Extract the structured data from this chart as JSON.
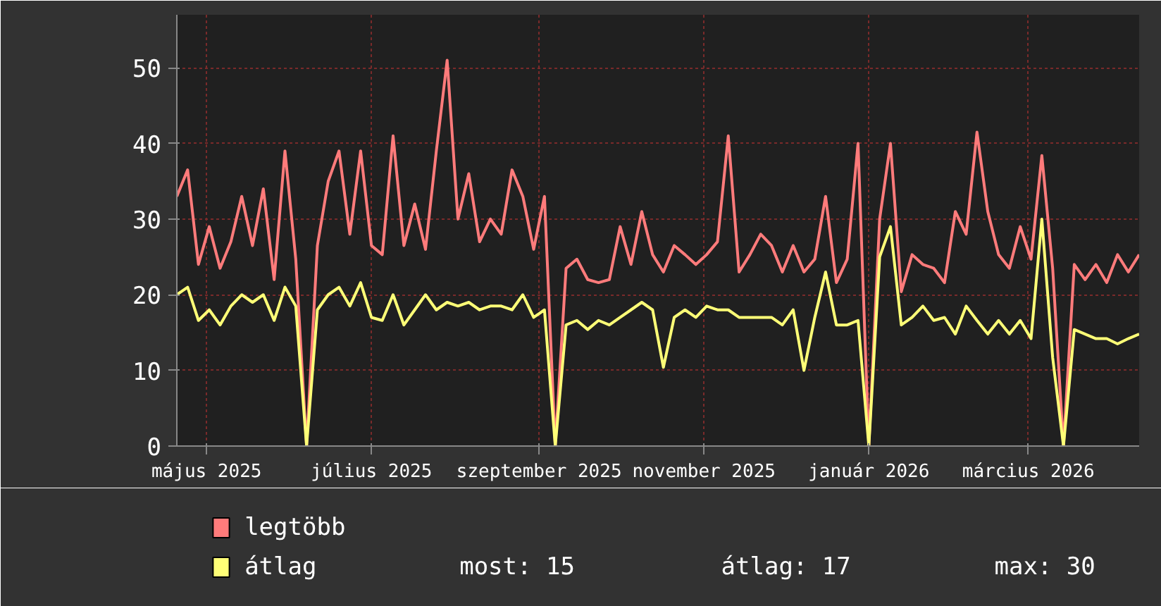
{
  "chart_data": {
    "type": "line",
    "x": [
      "2025-04-20",
      "2025-04-24",
      "2025-04-28",
      "2025-05-02",
      "2025-05-06",
      "2025-05-10",
      "2025-05-14",
      "2025-05-18",
      "2025-05-22",
      "2025-05-26",
      "2025-05-30",
      "2025-06-03",
      "2025-06-07",
      "2025-06-11",
      "2025-06-15",
      "2025-06-19",
      "2025-06-23",
      "2025-06-27",
      "2025-07-01",
      "2025-07-05",
      "2025-07-09",
      "2025-07-13",
      "2025-07-17",
      "2025-07-21",
      "2025-07-25",
      "2025-07-29",
      "2025-08-02",
      "2025-08-06",
      "2025-08-10",
      "2025-08-14",
      "2025-08-18",
      "2025-08-22",
      "2025-08-26",
      "2025-08-30",
      "2025-09-03",
      "2025-09-07",
      "2025-09-11",
      "2025-09-15",
      "2025-09-19",
      "2025-09-23",
      "2025-09-27",
      "2025-10-01",
      "2025-10-05",
      "2025-10-09",
      "2025-10-13",
      "2025-10-17",
      "2025-10-21",
      "2025-10-25",
      "2025-10-29",
      "2025-11-02",
      "2025-11-06",
      "2025-11-10",
      "2025-11-14",
      "2025-11-18",
      "2025-11-22",
      "2025-11-26",
      "2025-11-30",
      "2025-12-04",
      "2025-12-08",
      "2025-12-12",
      "2025-12-16",
      "2025-12-20",
      "2025-12-24",
      "2025-12-28",
      "2026-01-01",
      "2026-01-05",
      "2026-01-09",
      "2026-01-13",
      "2026-01-17",
      "2026-01-21",
      "2026-01-25",
      "2026-01-29",
      "2026-02-02",
      "2026-02-06",
      "2026-02-10",
      "2026-02-14",
      "2026-02-18",
      "2026-02-22",
      "2026-02-26",
      "2026-03-02",
      "2026-03-06",
      "2026-03-10",
      "2026-03-14",
      "2026-03-18",
      "2026-03-22",
      "2026-03-26",
      "2026-03-30",
      "2026-04-03",
      "2026-04-07",
      "2026-04-11"
    ],
    "series": [
      {
        "name": "legtöbb",
        "color": "#ff7b7b",
        "values": [
          33,
          36.5,
          24,
          29,
          23.5,
          27,
          33,
          26.5,
          34,
          22,
          39,
          24.7,
          0,
          26.5,
          35,
          39,
          28,
          39,
          26.5,
          25.3,
          41,
          26.5,
          32,
          26,
          39,
          51,
          30,
          36,
          27,
          30,
          28,
          36.5,
          33,
          26,
          33,
          0,
          23.5,
          24.7,
          22,
          21.6,
          22,
          29,
          24,
          31,
          25.3,
          23,
          26.5,
          25.3,
          24,
          25.3,
          27,
          41,
          23,
          25.3,
          28,
          26.5,
          23,
          26.5,
          23,
          24.7,
          33,
          21.6,
          24.7,
          40,
          0,
          30,
          40,
          20.4,
          25.3,
          24,
          23.5,
          21.6,
          31,
          28,
          41.5,
          31,
          25.3,
          23.5,
          29,
          24.7,
          38.4,
          23.5,
          0,
          24,
          22,
          24,
          21.6,
          25.3,
          23,
          25.3
        ]
      },
      {
        "name": "átlag",
        "color": "#ffff77",
        "values": [
          20,
          21,
          16.6,
          18,
          16,
          18.5,
          20,
          19,
          20,
          16.6,
          21,
          18.5,
          0,
          18,
          20,
          21,
          18.5,
          21.6,
          17,
          16.6,
          20,
          16,
          18,
          20,
          18,
          19,
          18.5,
          19,
          18,
          18.5,
          18.5,
          18,
          20,
          17,
          18,
          0,
          16,
          16.6,
          15.4,
          16.6,
          16,
          17,
          18,
          19,
          18,
          10.4,
          17,
          18,
          17,
          18.5,
          18,
          18,
          17,
          17,
          17,
          17,
          16,
          18,
          10,
          17,
          23,
          16,
          16,
          16.6,
          0,
          25,
          29,
          16,
          17,
          18.5,
          16.6,
          17,
          14.8,
          18.5,
          16.6,
          14.8,
          16.6,
          14.8,
          16.6,
          14.2,
          30,
          11.7,
          0,
          15.4,
          14.8,
          14.2,
          14.2,
          13.5,
          14.2,
          14.8
        ]
      }
    ],
    "xlim": [
      "2025-04-20",
      "2026-04-11"
    ],
    "xticks": [
      {
        "value": "2025-05-01",
        "label": "május 2025"
      },
      {
        "value": "2025-07-01",
        "label": "július 2025"
      },
      {
        "value": "2025-09-01",
        "label": "szeptember 2025"
      },
      {
        "value": "2025-11-01",
        "label": "november 2025"
      },
      {
        "value": "2026-01-01",
        "label": "január 2026"
      },
      {
        "value": "2026-03-01",
        "label": "március 2026"
      }
    ],
    "ylim": [
      0,
      57
    ],
    "yticks": [
      0,
      10,
      20,
      30,
      40,
      50
    ],
    "grid": true,
    "legend": "bottom",
    "annotations": [
      "most: 15",
      "átlag: 17",
      "max: 30"
    ]
  }
}
